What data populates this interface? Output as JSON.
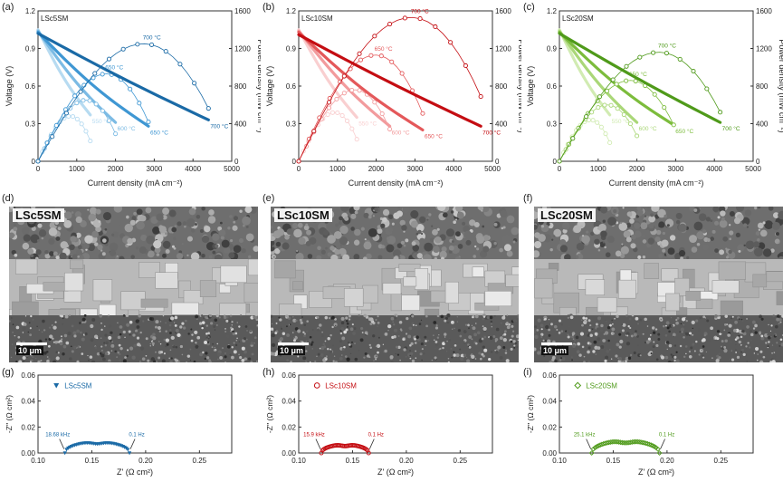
{
  "colors": {
    "blue": [
      "#1a6aa6",
      "#3f97d3",
      "#7cbbe4",
      "#b7dbf1"
    ],
    "red": [
      "#c40d12",
      "#e4585a",
      "#f29b9d",
      "#f9cfd0"
    ],
    "green": [
      "#4f9a1a",
      "#7cbc3c",
      "#aad778",
      "#d1ebb2"
    ]
  },
  "tags": [
    "(a)",
    "(b)",
    "(c)",
    "(d)",
    "(e)",
    "(f)",
    "(g)",
    "(h)",
    "(i)"
  ],
  "chart_data": [
    {
      "type": "line",
      "panel": "(a)",
      "name": "LSc5SM",
      "color": "blue",
      "xlabel": "Current density (mA cm⁻²)",
      "ylabel": "Voltage (V)",
      "y2label": "Power density (mW cm⁻²)",
      "xlim": [
        0,
        5000
      ],
      "ylim": [
        0,
        1.2
      ],
      "y2lim": [
        0,
        1600
      ],
      "xticks": [
        "0",
        "1000",
        "2000",
        "3000",
        "4000",
        "5000"
      ],
      "yticks": [
        "0",
        "0.3",
        "0.6",
        "0.9",
        "1.2"
      ],
      "y2ticks": [
        "0",
        "400",
        "800",
        "1200",
        "1600"
      ],
      "series": [
        {
          "label": "700 °C",
          "max_current": 4400,
          "ocv": 1.02,
          "end_voltage": 0.33,
          "peak_power": 1250
        },
        {
          "label": "650 °C",
          "max_current": 2850,
          "ocv": 1.03,
          "end_voltage": 0.28,
          "peak_power": 930
        },
        {
          "label": "600 °C",
          "max_current": 2000,
          "ocv": 1.04,
          "end_voltage": 0.31,
          "peak_power": 650
        },
        {
          "label": "550 °C",
          "max_current": 1350,
          "ocv": 1.05,
          "end_voltage": 0.37,
          "peak_power": 480
        }
      ]
    },
    {
      "type": "line",
      "panel": "(b)",
      "name": "LSc10SM",
      "color": "red",
      "xlabel": "Current density (mA cm⁻²)",
      "ylabel": "Voltage (V)",
      "y2label": "Power density (mW cm⁻²)",
      "xlim": [
        0,
        5000
      ],
      "ylim": [
        0,
        1.2
      ],
      "y2lim": [
        0,
        1600
      ],
      "xticks": [
        "0",
        "1000",
        "2000",
        "3000",
        "4000",
        "5000"
      ],
      "yticks": [
        "0",
        "0.3",
        "0.6",
        "0.9",
        "1.2"
      ],
      "y2ticks": [
        "0",
        "400",
        "800",
        "1200",
        "1600"
      ],
      "series": [
        {
          "label": "700 °C",
          "max_current": 4700,
          "ocv": 1.01,
          "end_voltage": 0.28,
          "peak_power": 1530
        },
        {
          "label": "650 °C",
          "max_current": 3200,
          "ocv": 1.03,
          "end_voltage": 0.25,
          "peak_power": 1130
        },
        {
          "label": "600 °C",
          "max_current": 2350,
          "ocv": 1.04,
          "end_voltage": 0.28,
          "peak_power": 760
        },
        {
          "label": "550 °C",
          "max_current": 1500,
          "ocv": 1.05,
          "end_voltage": 0.35,
          "peak_power": 520
        }
      ]
    },
    {
      "type": "line",
      "panel": "(c)",
      "name": "LSc20SM",
      "color": "green",
      "xlabel": "Current density (mA cm⁻²)",
      "ylabel": "Voltage (V)",
      "y2label": "Power density (mW cm⁻²)",
      "xlim": [
        0,
        5000
      ],
      "ylim": [
        0,
        1.2
      ],
      "y2lim": [
        0,
        1600
      ],
      "xticks": [
        "0",
        "1000",
        "2000",
        "3000",
        "4000",
        "5000"
      ],
      "yticks": [
        "0",
        "0.3",
        "0.6",
        "0.9",
        "1.2"
      ],
      "y2ticks": [
        "0",
        "400",
        "800",
        "1200",
        "1600"
      ],
      "series": [
        {
          "label": "700 °C",
          "max_current": 4150,
          "ocv": 1.02,
          "end_voltage": 0.31,
          "peak_power": 1160
        },
        {
          "label": "650 °C",
          "max_current": 2950,
          "ocv": 1.03,
          "end_voltage": 0.29,
          "peak_power": 860
        },
        {
          "label": "600 °C",
          "max_current": 2000,
          "ocv": 1.04,
          "end_voltage": 0.31,
          "peak_power": 600
        },
        {
          "label": "550 °C",
          "max_current": 1300,
          "ocv": 1.05,
          "end_voltage": 0.37,
          "peak_power": 440
        }
      ]
    },
    {
      "type": "scatter",
      "panel": "(g)",
      "name": "LSc5SM",
      "color": "blue",
      "marker": "triangle",
      "xlabel": "Z' (Ω cm²)",
      "ylabel": "-Z'' (Ω cm²)",
      "xlim": [
        0.1,
        0.28
      ],
      "ylim": [
        0,
        0.06
      ],
      "xticks": [
        "0.10",
        "0.15",
        "0.20",
        "0.25"
      ],
      "yticks": [
        "0.00",
        "0.02",
        "0.04",
        "0.06"
      ],
      "arc": {
        "z_start": 0.125,
        "z_end": 0.185,
        "height": 0.0085
      },
      "annotations": [
        {
          "text": "18.68 kHz",
          "z": 0.125
        },
        {
          "text": "0.1 Hz",
          "z": 0.185
        }
      ]
    },
    {
      "type": "scatter",
      "panel": "(h)",
      "name": "LSc10SM",
      "color": "red",
      "marker": "circle",
      "xlabel": "Z' (Ω cm²)",
      "ylabel": "-Z'' (Ω cm²)",
      "xlim": [
        0.1,
        0.28
      ],
      "ylim": [
        0,
        0.06
      ],
      "xticks": [
        "0.10",
        "0.15",
        "0.20",
        "0.25"
      ],
      "yticks": [
        "0.00",
        "0.02",
        "0.04",
        "0.06"
      ],
      "arc": {
        "z_start": 0.121,
        "z_end": 0.165,
        "height": 0.0065
      },
      "annotations": [
        {
          "text": "15.9 kHz",
          "z": 0.121
        },
        {
          "text": "0.1 Hz",
          "z": 0.165
        }
      ]
    },
    {
      "type": "scatter",
      "panel": "(i)",
      "name": "LSc20SM",
      "color": "green",
      "marker": "diamond",
      "xlabel": "Z' (Ω cm²)",
      "ylabel": "-Z'' (Ω cm²)",
      "xlim": [
        0.1,
        0.28
      ],
      "ylim": [
        0,
        0.06
      ],
      "xticks": [
        "0.10",
        "0.15",
        "0.20",
        "0.25"
      ],
      "yticks": [
        "0.00",
        "0.02",
        "0.04",
        "0.06"
      ],
      "arc": {
        "z_start": 0.13,
        "z_end": 0.193,
        "height": 0.0095
      },
      "annotations": [
        {
          "text": "25.1 kHz",
          "z": 0.13
        },
        {
          "text": "0.1 Hz",
          "z": 0.193
        }
      ]
    }
  ],
  "sem": [
    {
      "label": "LSc5SM",
      "scale": "10 μm"
    },
    {
      "label": "LSc10SM",
      "scale": "10 μm"
    },
    {
      "label": "LSc20SM",
      "scale": "10 μm"
    }
  ]
}
